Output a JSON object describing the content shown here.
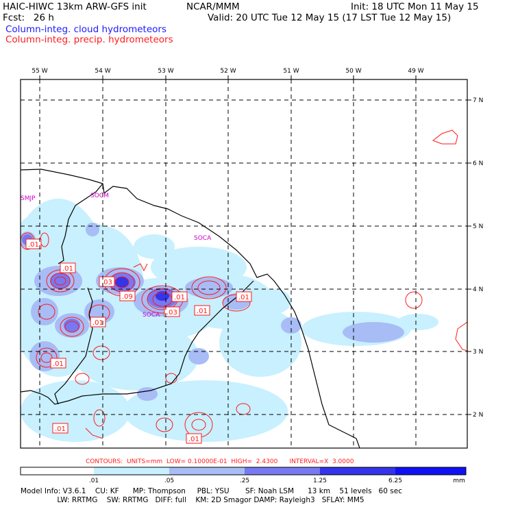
{
  "header": {
    "model": "HAIC-HIWC 13km ARW-GFS init",
    "org": "NCAR/MMM",
    "init": "Init: 18 UTC Mon 11 May 15",
    "fcst": "Fcst:   26 h",
    "valid": "Valid: 20 UTC Tue 12 May 15 (17 LST Tue 12 May 15)",
    "field_cloud": "Column-integ. cloud hydrometeors",
    "field_precip": "Column-integ. precip. hydrometeors",
    "colors": {
      "cloud": "#1a1aff",
      "precip": "#ff1a1a"
    }
  },
  "map": {
    "lon_labels": [
      "55 W",
      "54 W",
      "53 W",
      "52 W",
      "51 W",
      "50 W",
      "49 W"
    ],
    "lat_labels": [
      "7 N",
      "6 N",
      "5 N",
      "4 N",
      "3 N",
      "2 N"
    ],
    "station_labels": [
      "SMJP",
      "SOCM",
      "SOCA",
      "SOCA"
    ],
    "contour_labels": [
      ".01",
      ".01",
      ".03",
      ".09",
      ".01",
      ".01",
      ".03",
      ".01",
      ".01",
      ".01",
      ".01",
      ".01"
    ]
  },
  "contours_info": "CONTOURS:  UNITS=mm  LOW= 0.10000E-01  HIGH=  2.4300      INTERVAL=X  3.0000",
  "colorbar": {
    "ticks": [
      ".01",
      ".05",
      ".25",
      "1.25",
      "6.25"
    ],
    "unit": "mm",
    "colors": [
      "#ffffff",
      "#c8f0ff",
      "#a8bcf5",
      "#7878f0",
      "#3434e8",
      "#1010f5"
    ]
  },
  "footer": {
    "line1": "Model Info: V3.6.1    CU: KF      MP: Thompson     PBL: YSU       SF: Noah LSM      13 km    51 levels   60 sec",
    "line2": "                LW: RRTMG    SW: RRTMG   DIFF: full    KM: 2D Smagor DAMP: Rayleigh3   SFLAY: MM5"
  }
}
